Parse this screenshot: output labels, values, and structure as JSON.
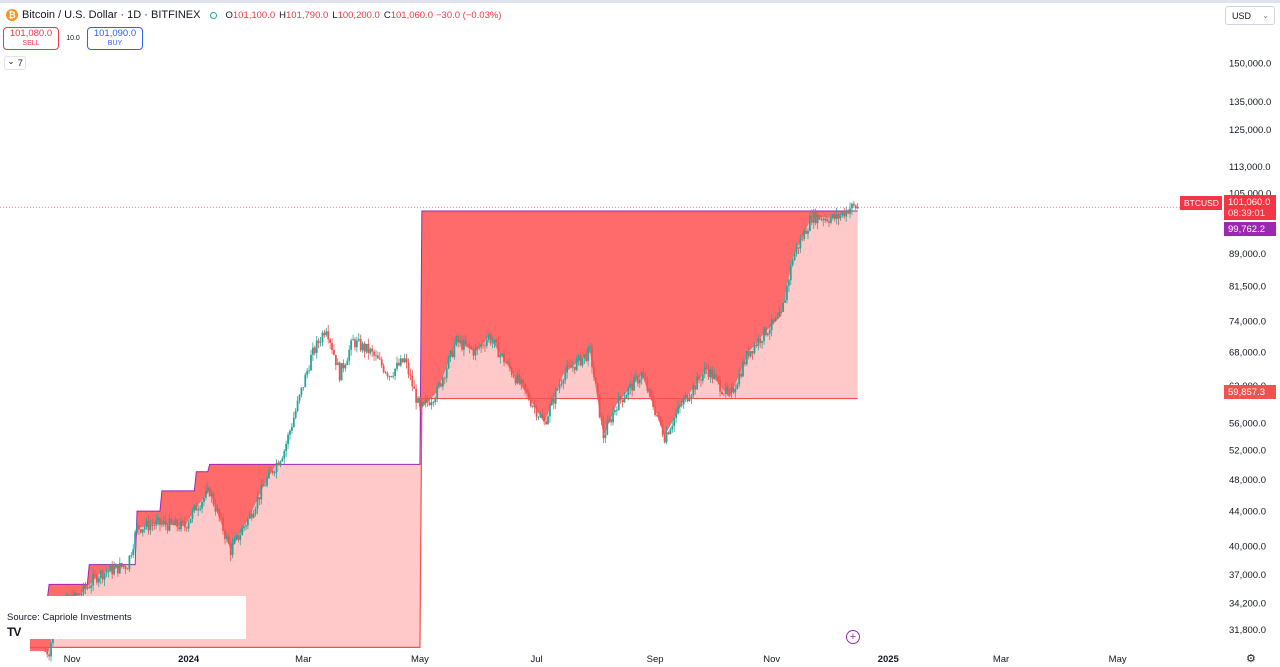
{
  "header": {
    "coin_glyph": "₿",
    "symbol": "Bitcoin / U.S. Dollar · 1D · BITFINEX",
    "ohlc": {
      "o_label": "O",
      "o": "101,100.0",
      "h_label": "H",
      "h": "101,790.0",
      "l_label": "L",
      "l": "100,200.0",
      "c_label": "C",
      "c": "101,060.0",
      "change": "−30.0 (−0.03%)"
    }
  },
  "trade": {
    "sell_price": "101,080.0",
    "sell_label": "SELL",
    "spread": "10.0",
    "buy_price": "101,090.0",
    "buy_label": "BUY"
  },
  "indicator_toggle": {
    "chevron": "⌄",
    "count": "7"
  },
  "currency": {
    "label": "USD",
    "chevron": "⌄"
  },
  "price_axis": [
    "150,000.0",
    "135,000.0",
    "125,000.0",
    "113,000.0",
    "105,000.0",
    "89,000.0",
    "81,500.0",
    "74,000.0",
    "68,000.0",
    "62,000.0",
    "56,000.0",
    "52,000.0",
    "48,000.0",
    "44,000.0",
    "40,000.0",
    "37,000.0",
    "34,200.0",
    "31,800.0"
  ],
  "time_axis": [
    "Nov",
    "2024",
    "Mar",
    "May",
    "Jul",
    "Sep",
    "Nov",
    "2025",
    "Mar",
    "May"
  ],
  "tags": {
    "symbol_tag": "BTCUSD",
    "last_price": "101,060.0",
    "countdown": "08:39:01",
    "purple_level": "99,762.2",
    "red_level": "59,857.3"
  },
  "source": {
    "text": "Source: Capriole Investments",
    "logo": "TV"
  },
  "colors": {
    "up": "#26a69a",
    "down": "#ef5350",
    "band_dark": "#ff6b6b",
    "band_light": "#ffc9c9",
    "purple": "#9c27b0"
  },
  "chart_data": {
    "type": "candlestick",
    "title": "Bitcoin / U.S. Dollar · 1D · BITFINEX",
    "y_scale": "log",
    "ylim": [
      30500,
      165000
    ],
    "x_range": [
      "2023-10-10",
      "2025-05-31"
    ],
    "close_series": [
      [
        "2023-10-20",
        30000
      ],
      [
        "2023-10-25",
        34000
      ],
      [
        "2023-11-05",
        35000
      ],
      [
        "2023-11-15",
        37000
      ],
      [
        "2023-11-30",
        38000
      ],
      [
        "2023-12-05",
        42000
      ],
      [
        "2023-12-15",
        42500
      ],
      [
        "2023-12-30",
        42200
      ],
      [
        "2024-01-05",
        44500
      ],
      [
        "2024-01-12",
        46500
      ],
      [
        "2024-01-23",
        39500
      ],
      [
        "2024-02-01",
        43000
      ],
      [
        "2024-02-10",
        47500
      ],
      [
        "2024-02-20",
        52000
      ],
      [
        "2024-02-28",
        60000
      ],
      [
        "2024-03-05",
        67000
      ],
      [
        "2024-03-13",
        73000
      ],
      [
        "2024-03-20",
        64000
      ],
      [
        "2024-03-27",
        70000
      ],
      [
        "2024-04-05",
        68000
      ],
      [
        "2024-04-15",
        64000
      ],
      [
        "2024-04-23",
        66500
      ],
      [
        "2024-05-01",
        58000
      ],
      [
        "2024-05-10",
        61000
      ],
      [
        "2024-05-20",
        70000
      ],
      [
        "2024-05-30",
        68000
      ],
      [
        "2024-06-06",
        71000
      ],
      [
        "2024-06-15",
        66000
      ],
      [
        "2024-06-25",
        61000
      ],
      [
        "2024-07-05",
        56000
      ],
      [
        "2024-07-15",
        64000
      ],
      [
        "2024-07-29",
        68000
      ],
      [
        "2024-08-05",
        54000
      ],
      [
        "2024-08-12",
        59000
      ],
      [
        "2024-08-25",
        64000
      ],
      [
        "2024-09-06",
        54000
      ],
      [
        "2024-09-15",
        59000
      ],
      [
        "2024-09-28",
        65000
      ],
      [
        "2024-10-10",
        60000
      ],
      [
        "2024-10-20",
        68000
      ],
      [
        "2024-10-29",
        72000
      ],
      [
        "2024-11-06",
        75000
      ],
      [
        "2024-11-12",
        88000
      ],
      [
        "2024-11-22",
        98500
      ],
      [
        "2024-12-05",
        98000
      ],
      [
        "2024-12-12",
        101000
      ],
      [
        "2024-12-16",
        101060
      ]
    ],
    "band_upper_levels": [
      [
        "2023-10-10",
        34500
      ],
      [
        "2023-10-20",
        36000
      ],
      [
        "2023-11-10",
        38000
      ],
      [
        "2023-12-05",
        44000
      ],
      [
        "2023-12-18",
        46500
      ],
      [
        "2024-01-05",
        49000
      ],
      [
        "2024-01-12",
        50000
      ],
      [
        "2024-05-02",
        100000
      ],
      [
        "2024-12-16",
        100000
      ]
    ],
    "band_lower_levels": [
      [
        "2023-10-10",
        30300
      ],
      [
        "2024-05-02",
        30300
      ],
      [
        "2024-05-02",
        59857.3
      ],
      [
        "2024-12-16",
        59857.3
      ]
    ],
    "horizontal_levels": [
      {
        "value": 101060.0,
        "label": "101,060.0"
      },
      {
        "value": 99762.2,
        "label": "99,762.2"
      },
      {
        "value": 59857.3,
        "label": "59,857.3"
      }
    ]
  }
}
